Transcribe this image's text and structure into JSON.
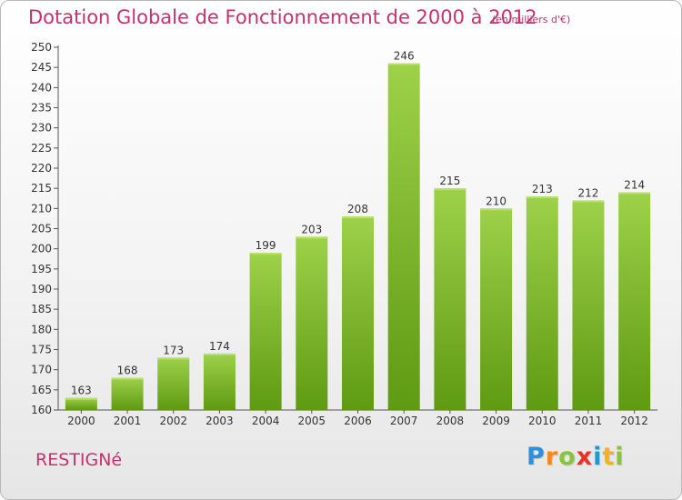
{
  "title": "Dotation Globale de Fonctionnement de 2000 à 2012",
  "unit_note": "(en milliers d'€)",
  "commune": "RESTIGNé",
  "logo": {
    "letters": [
      "P",
      "r",
      "o",
      "x",
      "i",
      "t",
      "i"
    ],
    "colors": [
      "#2f8fd8",
      "#f08a1c",
      "#8ac43c",
      "#e8332a",
      "#1d9ad6",
      "#f2b519",
      "#8ac43c"
    ]
  },
  "colors": {
    "bar_top": "#9ed14a",
    "bar_bottom": "#5e9a12",
    "accent": "#c7306e"
  },
  "chart_data": {
    "type": "bar",
    "categories": [
      "2000",
      "2001",
      "2002",
      "2003",
      "2004",
      "2005",
      "2006",
      "2007",
      "2008",
      "2009",
      "2010",
      "2011",
      "2012"
    ],
    "values": [
      163,
      168,
      173,
      174,
      199,
      203,
      208,
      246,
      215,
      210,
      213,
      212,
      214
    ],
    "title": "Dotation Globale de Fonctionnement de 2000 à 2012",
    "xlabel": "",
    "ylabel": "",
    "ylim": [
      160,
      250
    ],
    "yticks": [
      160,
      165,
      170,
      175,
      180,
      185,
      190,
      195,
      200,
      205,
      210,
      215,
      220,
      225,
      230,
      235,
      240,
      245,
      250
    ],
    "grid": false,
    "legend": "none",
    "data_labels": true
  }
}
